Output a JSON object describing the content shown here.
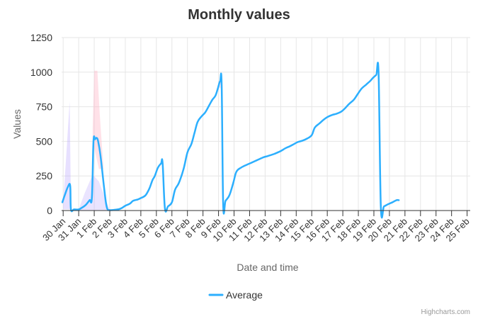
{
  "chart_data": {
    "type": "line",
    "title": "Monthly values",
    "xlabel": "Date and time",
    "ylabel": "Values",
    "ylim": [
      0,
      1250
    ],
    "yticks": [
      0,
      250,
      500,
      750,
      1000,
      1250
    ],
    "xticks": [
      "30 Jan",
      "31 Jan",
      "1 Feb",
      "2 Feb",
      "3 Feb",
      "4 Feb",
      "5 Feb",
      "6 Feb",
      "7 Feb",
      "8 Feb",
      "9 Feb",
      "10 Feb",
      "11 Feb",
      "12 Feb",
      "13 Feb",
      "14 Feb",
      "15 Feb",
      "16 Feb",
      "17 Feb",
      "18 Feb",
      "19 Feb",
      "20 Feb",
      "21 Feb",
      "22 Feb",
      "23 Feb",
      "24 Feb",
      "25 Feb"
    ],
    "x_unit": "days since 30 Jan",
    "xlim": [
      -0.1,
      26.2
    ],
    "grid": true,
    "legend": "bottom-center",
    "series": [
      {
        "name": "Average",
        "color": "#2caffe",
        "points": [
          [
            -0.05,
            60
          ],
          [
            0.1,
            110
          ],
          [
            0.3,
            170
          ],
          [
            0.45,
            180
          ],
          [
            0.5,
            8
          ],
          [
            0.7,
            8
          ],
          [
            1.0,
            8
          ],
          [
            1.2,
            20
          ],
          [
            1.45,
            40
          ],
          [
            1.7,
            75
          ],
          [
            1.85,
            95
          ],
          [
            1.95,
            500
          ],
          [
            2.05,
            515
          ],
          [
            2.15,
            525
          ],
          [
            2.25,
            500
          ],
          [
            2.4,
            400
          ],
          [
            2.6,
            200
          ],
          [
            2.75,
            60
          ],
          [
            2.85,
            10
          ],
          [
            3.0,
            3
          ],
          [
            3.3,
            5
          ],
          [
            3.6,
            10
          ],
          [
            3.8,
            20
          ],
          [
            4.0,
            35
          ],
          [
            4.3,
            50
          ],
          [
            4.5,
            70
          ],
          [
            4.8,
            80
          ],
          [
            5.0,
            90
          ],
          [
            5.3,
            110
          ],
          [
            5.55,
            160
          ],
          [
            5.75,
            220
          ],
          [
            5.9,
            250
          ],
          [
            6.1,
            310
          ],
          [
            6.3,
            340
          ],
          [
            6.4,
            345
          ],
          [
            6.55,
            15
          ],
          [
            6.75,
            30
          ],
          [
            7.0,
            60
          ],
          [
            7.2,
            150
          ],
          [
            7.45,
            200
          ],
          [
            7.75,
            300
          ],
          [
            8.0,
            420
          ],
          [
            8.25,
            480
          ],
          [
            8.45,
            560
          ],
          [
            8.65,
            640
          ],
          [
            8.9,
            680
          ],
          [
            9.15,
            710
          ],
          [
            9.4,
            760
          ],
          [
            9.6,
            800
          ],
          [
            9.8,
            830
          ],
          [
            9.95,
            880
          ],
          [
            10.1,
            935
          ],
          [
            10.2,
            910
          ],
          [
            10.3,
            40
          ],
          [
            10.45,
            70
          ],
          [
            10.7,
            110
          ],
          [
            10.95,
            200
          ],
          [
            11.15,
            280
          ],
          [
            11.45,
            310
          ],
          [
            11.8,
            330
          ],
          [
            12.1,
            345
          ],
          [
            12.4,
            360
          ],
          [
            12.6,
            370
          ],
          [
            12.9,
            385
          ],
          [
            13.2,
            395
          ],
          [
            13.6,
            410
          ],
          [
            14.0,
            430
          ],
          [
            14.3,
            450
          ],
          [
            14.6,
            465
          ],
          [
            14.85,
            480
          ],
          [
            15.1,
            495
          ],
          [
            15.4,
            505
          ],
          [
            15.7,
            520
          ],
          [
            16.0,
            545
          ],
          [
            16.2,
            600
          ],
          [
            16.5,
            630
          ],
          [
            16.75,
            655
          ],
          [
            17.0,
            675
          ],
          [
            17.3,
            690
          ],
          [
            17.6,
            700
          ],
          [
            17.9,
            715
          ],
          [
            18.15,
            740
          ],
          [
            18.4,
            770
          ],
          [
            18.7,
            800
          ],
          [
            18.95,
            840
          ],
          [
            19.2,
            880
          ],
          [
            19.5,
            910
          ],
          [
            19.75,
            935
          ],
          [
            19.95,
            960
          ],
          [
            20.15,
            980
          ],
          [
            20.3,
            995
          ],
          [
            20.45,
            25
          ],
          [
            20.65,
            30
          ],
          [
            20.9,
            45
          ],
          [
            21.2,
            60
          ],
          [
            21.45,
            75
          ],
          [
            21.6,
            75
          ]
        ]
      }
    ],
    "shaded_bands": [
      {
        "color": "#b9a7ff",
        "opacity": 0.35,
        "points": [
          [
            0.0,
            60
          ],
          [
            0.2,
            400
          ],
          [
            0.42,
            790
          ],
          [
            0.5,
            8
          ],
          [
            0.0,
            8
          ]
        ]
      },
      {
        "color": "#b9a7ff",
        "opacity": 0.3,
        "points": [
          [
            1.0,
            8
          ],
          [
            1.4,
            130
          ],
          [
            1.9,
            260
          ],
          [
            2.3,
            210
          ],
          [
            2.7,
            90
          ],
          [
            3.0,
            3
          ],
          [
            1.0,
            3
          ]
        ]
      },
      {
        "color": "#ffb3c6",
        "opacity": 0.4,
        "points": [
          [
            1.9,
            600
          ],
          [
            2.0,
            1010
          ],
          [
            2.2,
            1010
          ],
          [
            2.35,
            700
          ],
          [
            2.6,
            300
          ],
          [
            2.3,
            300
          ],
          [
            1.9,
            500
          ]
        ]
      },
      {
        "color": "#ffb3c6",
        "opacity": 0.35,
        "points": [
          [
            10.0,
            900
          ],
          [
            10.15,
            1000
          ],
          [
            10.25,
            920
          ],
          [
            10.1,
            880
          ]
        ]
      }
    ]
  },
  "legend": {
    "label": "Average"
  },
  "credits": "Highcharts.com"
}
